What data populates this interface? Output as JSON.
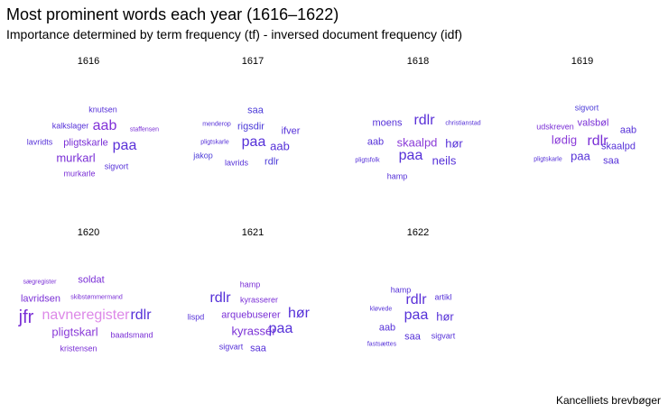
{
  "title": "Most prominent words each year (1616–1622)",
  "subtitle": "Importance determined by term frequency (tf) - inversed document frequency (idf)",
  "caption": "Kancelliets brevbøger",
  "chart_data": {
    "type": "wordcloud",
    "facets": [
      {
        "year": "1616",
        "words": [
          {
            "text": "knutsen",
            "weight": 1,
            "color": "#5530d8"
          },
          {
            "text": "kalkslager",
            "weight": 1,
            "color": "#5530d8"
          },
          {
            "text": "aab",
            "weight": 4,
            "color": "#8030d8"
          },
          {
            "text": "staffensen",
            "weight": 0,
            "color": "#7a2fd6"
          },
          {
            "text": "lavridts",
            "weight": 1,
            "color": "#5530d8"
          },
          {
            "text": "pligtskarle",
            "weight": 2,
            "color": "#7a2fd6"
          },
          {
            "text": "paa",
            "weight": 4,
            "color": "#5a30d8"
          },
          {
            "text": "murkarl",
            "weight": 3,
            "color": "#7a2fd6"
          },
          {
            "text": "sigvort",
            "weight": 1,
            "color": "#5530d8"
          },
          {
            "text": "murkarle",
            "weight": 1,
            "color": "#7a2fd6"
          }
        ]
      },
      {
        "year": "1617",
        "words": [
          {
            "text": "saa",
            "weight": 2,
            "color": "#4b3ad8"
          },
          {
            "text": "menderop",
            "weight": 0,
            "color": "#5530d8"
          },
          {
            "text": "rigsdir",
            "weight": 2,
            "color": "#4b3ad8"
          },
          {
            "text": "ifver",
            "weight": 2,
            "color": "#5530d8"
          },
          {
            "text": "pligtskarle",
            "weight": 0,
            "color": "#5530d8"
          },
          {
            "text": "paa",
            "weight": 4,
            "color": "#5530d8"
          },
          {
            "text": "aab",
            "weight": 3,
            "color": "#5530d8"
          },
          {
            "text": "jakop",
            "weight": 1,
            "color": "#4b3ad8"
          },
          {
            "text": "lavrids",
            "weight": 1,
            "color": "#5530d8"
          },
          {
            "text": "rdlr",
            "weight": 2,
            "color": "#4b3ad8"
          }
        ]
      },
      {
        "year": "1618",
        "words": [
          {
            "text": "moens",
            "weight": 2,
            "color": "#5530d8"
          },
          {
            "text": "rdlr",
            "weight": 4,
            "color": "#5a30d8"
          },
          {
            "text": "christianstad",
            "weight": 0,
            "color": "#5530d8"
          },
          {
            "text": "aab",
            "weight": 2,
            "color": "#5530d8"
          },
          {
            "text": "skaalpd",
            "weight": 3,
            "color": "#8a3ad8"
          },
          {
            "text": "hør",
            "weight": 3,
            "color": "#5530d8"
          },
          {
            "text": "pligtsfolk",
            "weight": 0,
            "color": "#5530d8"
          },
          {
            "text": "paa",
            "weight": 4,
            "color": "#5530d8"
          },
          {
            "text": "neils",
            "weight": 3,
            "color": "#5530d8"
          },
          {
            "text": "hamp",
            "weight": 1,
            "color": "#5530d8"
          }
        ]
      },
      {
        "year": "1619",
        "words": [
          {
            "text": "sigvort",
            "weight": 1,
            "color": "#4b3ad8"
          },
          {
            "text": "udskreven",
            "weight": 1,
            "color": "#7a2fd6"
          },
          {
            "text": "valsbøl",
            "weight": 2,
            "color": "#7a2fd6"
          },
          {
            "text": "aab",
            "weight": 2,
            "color": "#5530d8"
          },
          {
            "text": "lødig",
            "weight": 3,
            "color": "#8a3ad8"
          },
          {
            "text": "rdlr",
            "weight": 4,
            "color": "#7a2fd6"
          },
          {
            "text": "skaalpd",
            "weight": 2,
            "color": "#5530d8"
          },
          {
            "text": "pligtskarle",
            "weight": 0,
            "color": "#5530d8"
          },
          {
            "text": "paa",
            "weight": 3,
            "color": "#5530d8"
          },
          {
            "text": "saa",
            "weight": 2,
            "color": "#5530d8"
          }
        ]
      },
      {
        "year": "1620",
        "words": [
          {
            "text": "sægregister",
            "weight": 0,
            "color": "#7a2fd6"
          },
          {
            "text": "soldat",
            "weight": 2,
            "color": "#7a2fd6"
          },
          {
            "text": "lavridsen",
            "weight": 2,
            "color": "#7a2fd6"
          },
          {
            "text": "skibstømmermand",
            "weight": 0,
            "color": "#7a2fd6"
          },
          {
            "text": "jfr",
            "weight": 5,
            "color": "#7a2fd6"
          },
          {
            "text": "navneregister",
            "weight": 4,
            "color": "#dd88e8"
          },
          {
            "text": "rdlr",
            "weight": 4,
            "color": "#5530d8"
          },
          {
            "text": "pligtskarl",
            "weight": 3,
            "color": "#8a3ad8"
          },
          {
            "text": "baadsmand",
            "weight": 1,
            "color": "#7a2fd6"
          },
          {
            "text": "kristensen",
            "weight": 1,
            "color": "#7a2fd6"
          }
        ]
      },
      {
        "year": "1621",
        "words": [
          {
            "text": "hamp",
            "weight": 1,
            "color": "#7a2fd6"
          },
          {
            "text": "rdlr",
            "weight": 4,
            "color": "#5530d8"
          },
          {
            "text": "kyrasserer",
            "weight": 1,
            "color": "#7a2fd6"
          },
          {
            "text": "lispd",
            "weight": 1,
            "color": "#5530d8"
          },
          {
            "text": "arquebuserer",
            "weight": 2,
            "color": "#7a2fd6"
          },
          {
            "text": "hør",
            "weight": 4,
            "color": "#5530d8"
          },
          {
            "text": "kyrassér",
            "weight": 3,
            "color": "#7a2fd6"
          },
          {
            "text": "paa",
            "weight": 4,
            "color": "#5530d8"
          },
          {
            "text": "sigvart",
            "weight": 1,
            "color": "#5530d8"
          },
          {
            "text": "saa",
            "weight": 2,
            "color": "#5530d8"
          }
        ]
      },
      {
        "year": "1622",
        "words": [
          {
            "text": "hamp",
            "weight": 1,
            "color": "#5530d8"
          },
          {
            "text": "rdlr",
            "weight": 4,
            "color": "#5a30d8"
          },
          {
            "text": "artikl",
            "weight": 1,
            "color": "#5530d8"
          },
          {
            "text": "kløvede",
            "weight": 0,
            "color": "#5530d8"
          },
          {
            "text": "paa",
            "weight": 4,
            "color": "#5530d8"
          },
          {
            "text": "hør",
            "weight": 3,
            "color": "#5530d8"
          },
          {
            "text": "aab",
            "weight": 2,
            "color": "#5530d8"
          },
          {
            "text": "saa",
            "weight": 2,
            "color": "#5530d8"
          },
          {
            "text": "sigvart",
            "weight": 1,
            "color": "#5530d8"
          },
          {
            "text": "fastsættes",
            "weight": 0,
            "color": "#5530d8"
          }
        ]
      }
    ]
  }
}
